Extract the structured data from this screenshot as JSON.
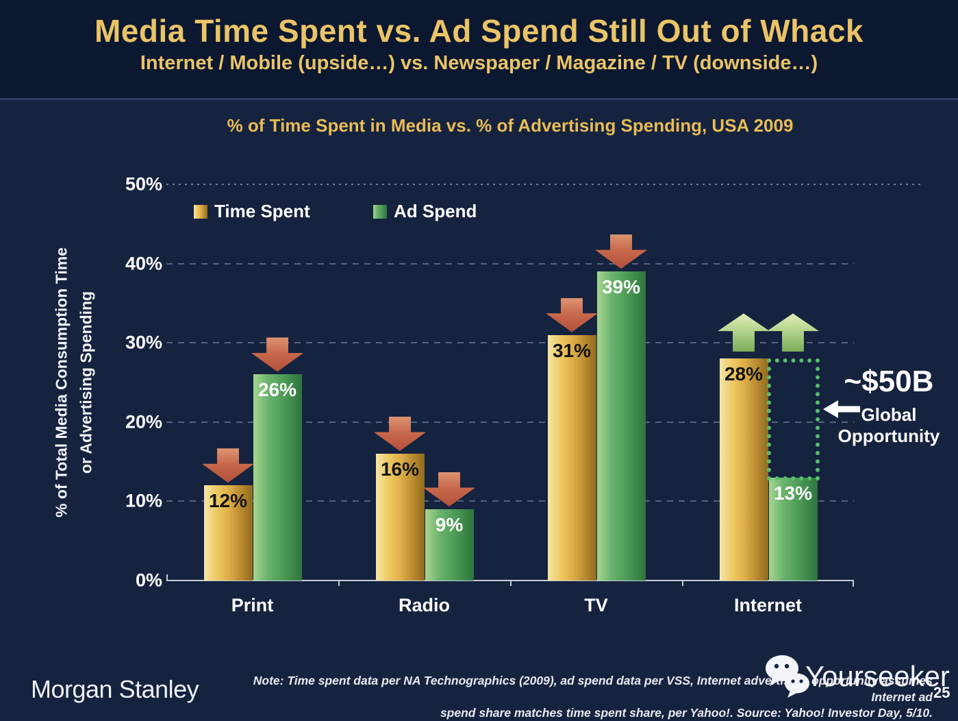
{
  "header": {
    "title": "Media Time Spent vs. Ad Spend Still Out of Whack",
    "subtitle": "Internet / Mobile (upside…) vs. Newspaper / Magazine / TV (downside…)"
  },
  "chart_data": {
    "type": "bar",
    "title": "% of Time Spent in Media vs. % of Advertising Spending, USA 2009",
    "categories": [
      "Print",
      "Radio",
      "TV",
      "Internet"
    ],
    "series": [
      {
        "name": "Time Spent",
        "color": "#dfae45",
        "values": [
          12,
          16,
          31,
          28
        ],
        "value_labels": [
          "12%",
          "16%",
          "31%",
          "28%"
        ],
        "label_color": "#131313",
        "arrows": [
          "down",
          "down",
          "down",
          "up"
        ]
      },
      {
        "name": "Ad Spend",
        "color": "#55a560",
        "values": [
          26,
          9,
          39,
          13
        ],
        "value_labels": [
          "26%",
          "9%",
          "39%",
          "13%"
        ],
        "label_color": "#ffffff",
        "arrows": [
          "down",
          "down",
          "down",
          "up"
        ]
      }
    ],
    "xlabel": "",
    "ylabel": "% of Total Media Consumption Time or Advertising Spending",
    "ylabel_lines": [
      "% of Total Media Consumption Time",
      "or Advertising Spending"
    ],
    "ylim": [
      0,
      50
    ],
    "yticks": [
      0,
      10,
      20,
      30,
      40,
      50
    ],
    "ytick_labels": [
      "0%",
      "10%",
      "20%",
      "30%",
      "40%",
      "50%"
    ],
    "grid": "horizontal dashed",
    "legend_position": "inside top-left",
    "arrow_color_down": "#c1593f",
    "arrow_color_up": "#a9cd7e",
    "annotations": {
      "opportunity_value": "~$50B",
      "opportunity_label": "Global Opportunity",
      "opportunity_gap": {
        "category": "Internet",
        "series": "Ad Spend",
        "from_pct": 13,
        "to_pct": 28
      },
      "gap_border_color": "#55c06a"
    }
  },
  "footer": {
    "brand": "Morgan Stanley",
    "note_line1": "Note: Time spent data per NA Technographics (2009), ad spend data per VSS, Internet advertising opportunity assumes Internet ad",
    "note_line2": "spend share matches time spent share, per Yahoo!. Source: Yahoo! Investor Day, 5/10.",
    "page_number": "25",
    "watermark": "Yourseeker"
  }
}
